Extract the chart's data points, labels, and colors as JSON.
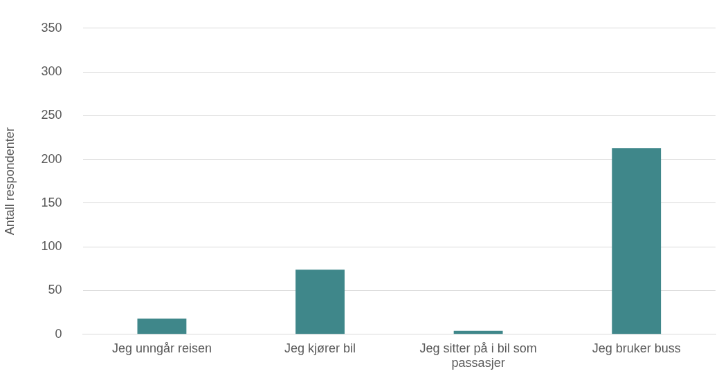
{
  "chart_data": {
    "type": "bar",
    "ylabel": "Antall respondenter",
    "categories": [
      "Jeg unngår reisen",
      "Jeg kjører bil",
      "Jeg sitter på i bil som passasjer",
      "Jeg bruker buss"
    ],
    "values": [
      18,
      74,
      4,
      213
    ],
    "color": "#3f878a",
    "ylim": [
      0,
      350
    ],
    "yticks": [
      0,
      50,
      100,
      150,
      200,
      250,
      300,
      350
    ],
    "grid": "y"
  }
}
